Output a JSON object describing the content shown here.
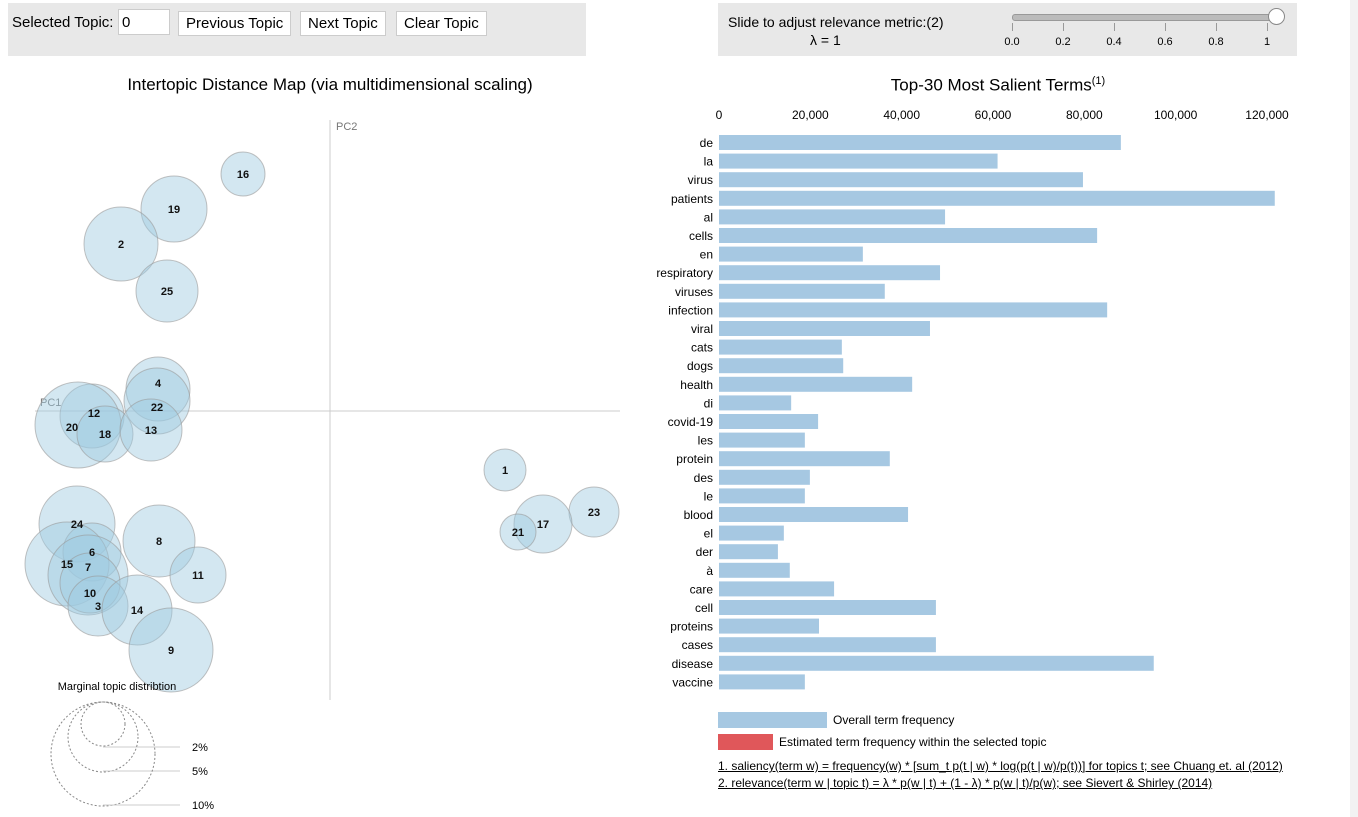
{
  "controls": {
    "selected_topic_label": "Selected Topic:",
    "selected_topic_value": "0",
    "previous_label": "Previous Topic",
    "next_label": "Next Topic",
    "clear_label": "Clear Topic",
    "slider_label": "Slide to adjust relevance metric:(2)",
    "lambda_text": "λ = 1",
    "lambda_value": 1,
    "slider_ticks": [
      "0.0",
      "0.2",
      "0.4",
      "0.6",
      "0.8",
      "1"
    ]
  },
  "left_chart": {
    "title": "Intertopic Distance Map (via multidimensional scaling)",
    "pc1_label": "PC1",
    "pc2_label": "PC2",
    "topics": [
      "16",
      "19",
      "2",
      "25",
      "4",
      "22",
      "12",
      "20",
      "18",
      "13",
      "1",
      "23",
      "17",
      "21",
      "24",
      "6",
      "15",
      "7",
      "10",
      "3",
      "8",
      "11",
      "14",
      "9"
    ],
    "marginal_title": "Marginal topic distribtion",
    "marginal_legend": [
      "2%",
      "5%",
      "10%"
    ],
    "bubble_color": "#9ecae1"
  },
  "chart_data": {
    "type": "bar",
    "title": "Top-30 Most Salient Terms",
    "title_superscript": "(1)",
    "orientation": "horizontal",
    "categories": [
      "de",
      "la",
      "virus",
      "patients",
      "al",
      "cells",
      "en",
      "respiratory",
      "viruses",
      "infection",
      "viral",
      "cats",
      "dogs",
      "health",
      "di",
      "covid-19",
      "les",
      "protein",
      "des",
      "le",
      "blood",
      "el",
      "der",
      "à",
      "care",
      "cell",
      "proteins",
      "cases",
      "disease",
      "vaccine"
    ],
    "values": [
      88000,
      61000,
      79700,
      121700,
      49500,
      82800,
      31500,
      48400,
      36300,
      85000,
      46200,
      26900,
      27200,
      42300,
      15800,
      21700,
      18800,
      37400,
      19900,
      18800,
      41400,
      14200,
      12900,
      15500,
      25200,
      47500,
      21900,
      47500,
      95200,
      18800
    ],
    "xlim": [
      0,
      125000
    ],
    "x_ticks": [
      "0",
      "20,000",
      "40,000",
      "60,000",
      "80,000",
      "100,000",
      "120,000"
    ],
    "x_tick_values": [
      0,
      20000,
      40000,
      60000,
      80000,
      100000,
      120000
    ],
    "bar_color": "#a6c8e2",
    "legend": [
      {
        "label": "Overall term frequency",
        "color": "#a6c8e2"
      },
      {
        "label": "Estimated term frequency within the selected topic",
        "color": "#e0575a"
      }
    ]
  },
  "footnotes": [
    "1. saliency(term w) = frequency(w) * [sum_t p(t | w) * log(p(t | w)/p(t))] for topics t; see Chuang et. al (2012)",
    "2. relevance(term w | topic t) = λ * p(w | t) + (1 - λ) * p(w | t)/p(w); see Sievert & Shirley (2014)"
  ]
}
